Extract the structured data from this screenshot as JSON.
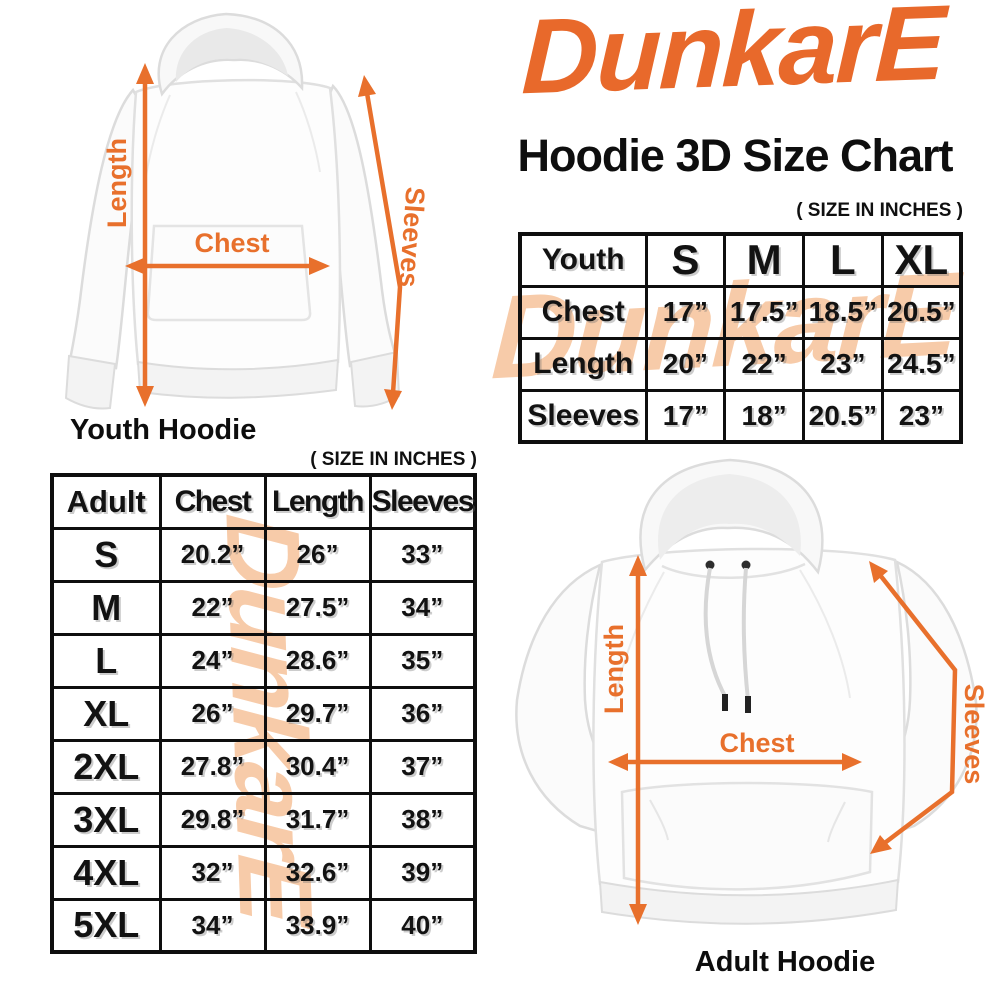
{
  "brand": {
    "logo_text": "DunkarE",
    "logo_color": "#e8692b"
  },
  "header": {
    "title": "Hoodie 3D Size Chart"
  },
  "youth_figure": {
    "caption": "Youth Hoodie",
    "length_label": "Length",
    "chest_label": "Chest",
    "sleeves_label": "Sleeves"
  },
  "adult_figure": {
    "caption": "Adult Hoodie",
    "length_label": "Length",
    "chest_label": "Chest",
    "sleeves_label": "Sleeves"
  },
  "youth_table": {
    "size_note": "( SIZE IN INCHES )",
    "corner_label": "Youth",
    "columns": [
      "S",
      "M",
      "L",
      "XL"
    ],
    "rows": [
      {
        "label": "Chest",
        "values": [
          "17”",
          "17.5”",
          "18.5”",
          "20.5”"
        ]
      },
      {
        "label": "Length",
        "values": [
          "20”",
          "22”",
          "23”",
          "24.5”"
        ]
      },
      {
        "label": "Sleeves",
        "values": [
          "17”",
          "18”",
          "20.5”",
          "23”"
        ]
      }
    ]
  },
  "adult_table": {
    "size_note": "( SIZE IN INCHES )",
    "corner_label": "Adult",
    "columns": [
      "Chest",
      "Length",
      "Sleeves"
    ],
    "rows": [
      {
        "label": "S",
        "values": [
          "20.2”",
          "26”",
          "33”"
        ]
      },
      {
        "label": "M",
        "values": [
          "22”",
          "27.5”",
          "34”"
        ]
      },
      {
        "label": "L",
        "values": [
          "24”",
          "28.6”",
          "35”"
        ]
      },
      {
        "label": "XL",
        "values": [
          "26”",
          "29.7”",
          "36”"
        ]
      },
      {
        "label": "2XL",
        "values": [
          "27.8”",
          "30.4”",
          "37”"
        ]
      },
      {
        "label": "3XL",
        "values": [
          "29.8”",
          "31.7”",
          "38”"
        ]
      },
      {
        "label": "4XL",
        "values": [
          "32”",
          "32.6”",
          "39”"
        ]
      },
      {
        "label": "5XL",
        "values": [
          "34”",
          "33.9”",
          "40”"
        ]
      }
    ]
  },
  "watermark": {
    "text": "DunkarE",
    "color": "#f7cba9"
  },
  "colors": {
    "accent_orange": "#e8692b",
    "arrow_orange": "#e8702c",
    "text_black": "#0e0e0e"
  }
}
